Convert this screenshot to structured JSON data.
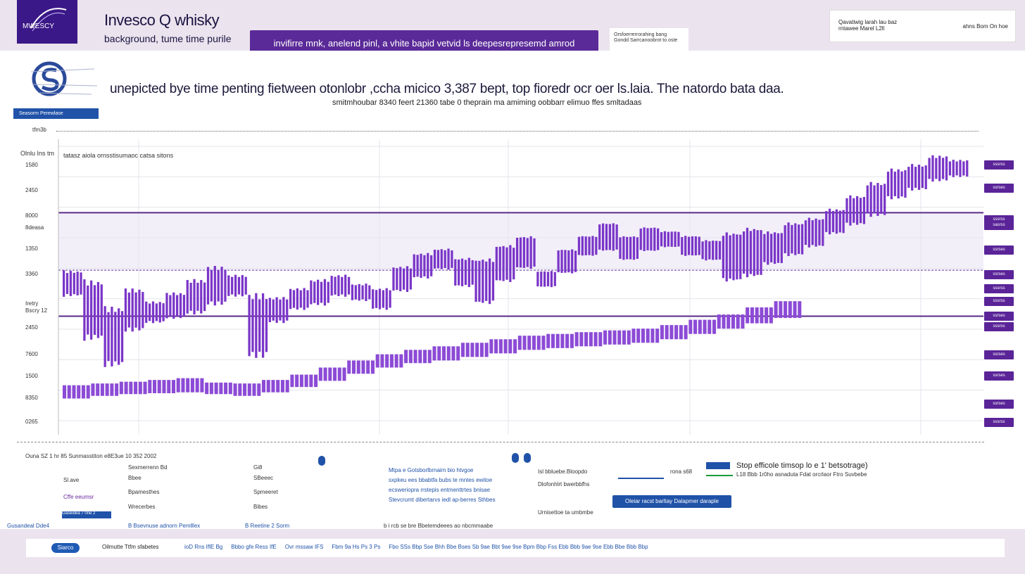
{
  "brand": {
    "title": "Invesco Q  whisky",
    "subtitle": "background, tume time purile",
    "logo_text": "MWESCY"
  },
  "banner_text": "invifirre mnk, anelend pinl, a vhite bapid vetvid ls deepesrepresemd amrod",
  "mini_card": [
    "Orsfoerrerrorahing bang",
    "Gondd Sarrcanoobrot to oste"
  ],
  "info_card": {
    "left": "Qavatiwig larah lau baz",
    "left2": "rntawee Marel L2ll",
    "right": "ahns Bom On hoe"
  },
  "tag_label": "Seasorm Perewlase",
  "headline": "unepicted bye time penting fietween otonlobr ,ccha micico 3,387 bept, top fioredr ocr oer ls.laia. The natordo bata daa.",
  "subline": "smitmhoubar 8340 feert 21360 tabe 0 theprain ma amiming oobbarr elimuo ffes smltadaas",
  "top_left_label": "tfm3b",
  "legend": {
    "title": "Olnlu Ins tm",
    "subtitle": "tatasz aiola ornsstisumaoc catsa sitons"
  },
  "y_labels": [
    "1580",
    "2450",
    "8000",
    "8deasa",
    "1350",
    "3360",
    "Iretry",
    "Bscry 12",
    "2450",
    "7600",
    "1500",
    "8350",
    "0265"
  ],
  "badges": [
    "sssrss",
    "ssrses",
    "sssrss",
    "sasrss",
    "ssrses",
    "ssrses",
    "sssrss",
    "sssrss",
    "ssrses",
    "sssrss",
    "ssrses",
    "ssrses",
    "ssrses",
    "sssrss"
  ],
  "footer": {
    "c1": [
      "Ouna SZ  1 hr   85  Sunmasstiton   e8E3ue   10 352 2002",
      "Sl.ave",
      "Cffe eeumsr",
      "Gaseidea 7 0ne 2",
      "Gusandeal Dde4"
    ],
    "c2": [
      "Sexmerrenn Bd",
      "Bbee",
      "Bpamesthes",
      "Wrecerbes",
      "B Bsevnuse adnorn Pemlllex"
    ],
    "c3": [
      "Gi8",
      "SBeeec",
      "Spmeeret",
      "Bibes",
      "B Reetine  2 Sorm"
    ],
    "c4": [
      "Mtpa e Gotsborlbrnaim bio htvgoe",
      "sxpkeu ees bbabtfa bubs te mntes ewitoe",
      "ecsweriopra rrstepis entmenttrtes  bnisae",
      "Stevcrumt dibertarvs  iedl ap-berres Sthbes",
      "b i rcb se bre Bbetemdeees ao nbcmmaabe"
    ],
    "c5": [
      "Isl bbluebe.Bloopdo",
      "Dlofonhlrt bwerbbfhs",
      "Urnisettoe ta umbmbe"
    ],
    "stop_title": "Stop efficole timsop lo e 1' betsotrage)",
    "stop_sub": "L18 Bbb  1r0ho asnaduta Fdat orcrlaor    Ftro  Suvbebe",
    "small1": "rona s68",
    "button": "Oleiar racst barltay Dalapmer daraple"
  },
  "taskbar": {
    "start": "Siarco",
    "label": "Oilmutte  Ttfm sfabetes",
    "items": [
      "ioD  Rns  IflE  Bg",
      "Bbbo  gfe  Ress  IfE",
      "Ovr mssaw  IFS",
      "Fbm 9a  Hs  Ps 3 Ps",
      "Fbo  SSs  Bbp  Sse  Bhh  Bbe  Bses  Sb  9ae  Bbt  9ae  9se  Bpm  Bbp  Fss  Ebb  Bbb  9ae  9se  Ebb  Bbe  Bbb  Bbp"
    ]
  },
  "colors": {
    "accent": "#5a2a98",
    "bar": "#7a35c8",
    "bar_light": "#8c4bd6",
    "blue": "#2052a8",
    "band": "#f2eff9"
  },
  "chart_data": {
    "type": "bar",
    "title": "unepicted bye time penting fietween otonlobr ,ccha micico 3,387 bept, top fioredr ocr oer ls.laia. The natordo bata daa.",
    "y_labels_shown": [
      "1580",
      "2450",
      "8000",
      "8deasa",
      "1350",
      "3360",
      "Iretry",
      "Bscry 12",
      "2450",
      "7600",
      "1500",
      "8350",
      "0265"
    ],
    "grid": true,
    "legend": "top-left",
    "series": [
      {
        "name": "Olnlu Ins tm",
        "style": "candle",
        "values": [
          [
            2200,
            2500
          ],
          [
            1700,
            2400
          ],
          [
            1400,
            2100
          ],
          [
            1800,
            2300
          ],
          [
            1900,
            2150
          ],
          [
            1950,
            2250
          ],
          [
            2000,
            2400
          ],
          [
            2100,
            2550
          ],
          [
            2200,
            2450
          ],
          [
            1500,
            2250
          ],
          [
            1900,
            2200
          ],
          [
            2050,
            2300
          ],
          [
            2100,
            2400
          ],
          [
            2200,
            2450
          ],
          [
            2150,
            2350
          ],
          [
            2050,
            2300
          ],
          [
            2250,
            2550
          ],
          [
            2400,
            2700
          ],
          [
            2500,
            2750
          ],
          [
            2300,
            2650
          ],
          [
            2100,
            2650
          ],
          [
            2350,
            2800
          ],
          [
            2500,
            2900
          ],
          [
            2300,
            2500
          ],
          [
            2450,
            2750
          ],
          [
            2650,
            2900
          ],
          [
            2700,
            3050
          ],
          [
            2600,
            2900
          ],
          [
            2700,
            3000
          ],
          [
            2750,
            2950
          ],
          [
            2650,
            2900
          ],
          [
            2600,
            2850
          ],
          [
            2350,
            2950
          ],
          [
            2400,
            3000
          ],
          [
            2550,
            2950
          ],
          [
            2650,
            3050
          ],
          [
            2750,
            3100
          ],
          [
            2900,
            3200
          ],
          [
            3000,
            3350
          ],
          [
            3100,
            3500
          ],
          [
            3300,
            3650
          ],
          [
            3400,
            3700
          ],
          [
            3500,
            3800
          ],
          [
            3550,
            3750
          ]
        ]
      },
      {
        "name": "tatasz aiola ornsstisumaoc catsa sitons",
        "style": "band",
        "values": [
          [
            1050,
            1200
          ],
          [
            1080,
            1220
          ],
          [
            1100,
            1240
          ],
          [
            1110,
            1260
          ],
          [
            1120,
            1280
          ],
          [
            1100,
            1230
          ],
          [
            1080,
            1220
          ],
          [
            1120,
            1260
          ],
          [
            1180,
            1320
          ],
          [
            1250,
            1400
          ],
          [
            1330,
            1480
          ],
          [
            1400,
            1550
          ],
          [
            1450,
            1600
          ],
          [
            1480,
            1640
          ],
          [
            1520,
            1680
          ],
          [
            1560,
            1720
          ],
          [
            1600,
            1760
          ],
          [
            1620,
            1780
          ],
          [
            1640,
            1800
          ],
          [
            1660,
            1820
          ],
          [
            1680,
            1840
          ],
          [
            1720,
            1880
          ],
          [
            1780,
            1940
          ],
          [
            1840,
            2000
          ],
          [
            1900,
            2080
          ],
          [
            1960,
            2150
          ]
        ]
      }
    ],
    "reference_lines": [
      3150,
      2500,
      1980
    ],
    "ylim": [
      800,
      3900
    ]
  }
}
